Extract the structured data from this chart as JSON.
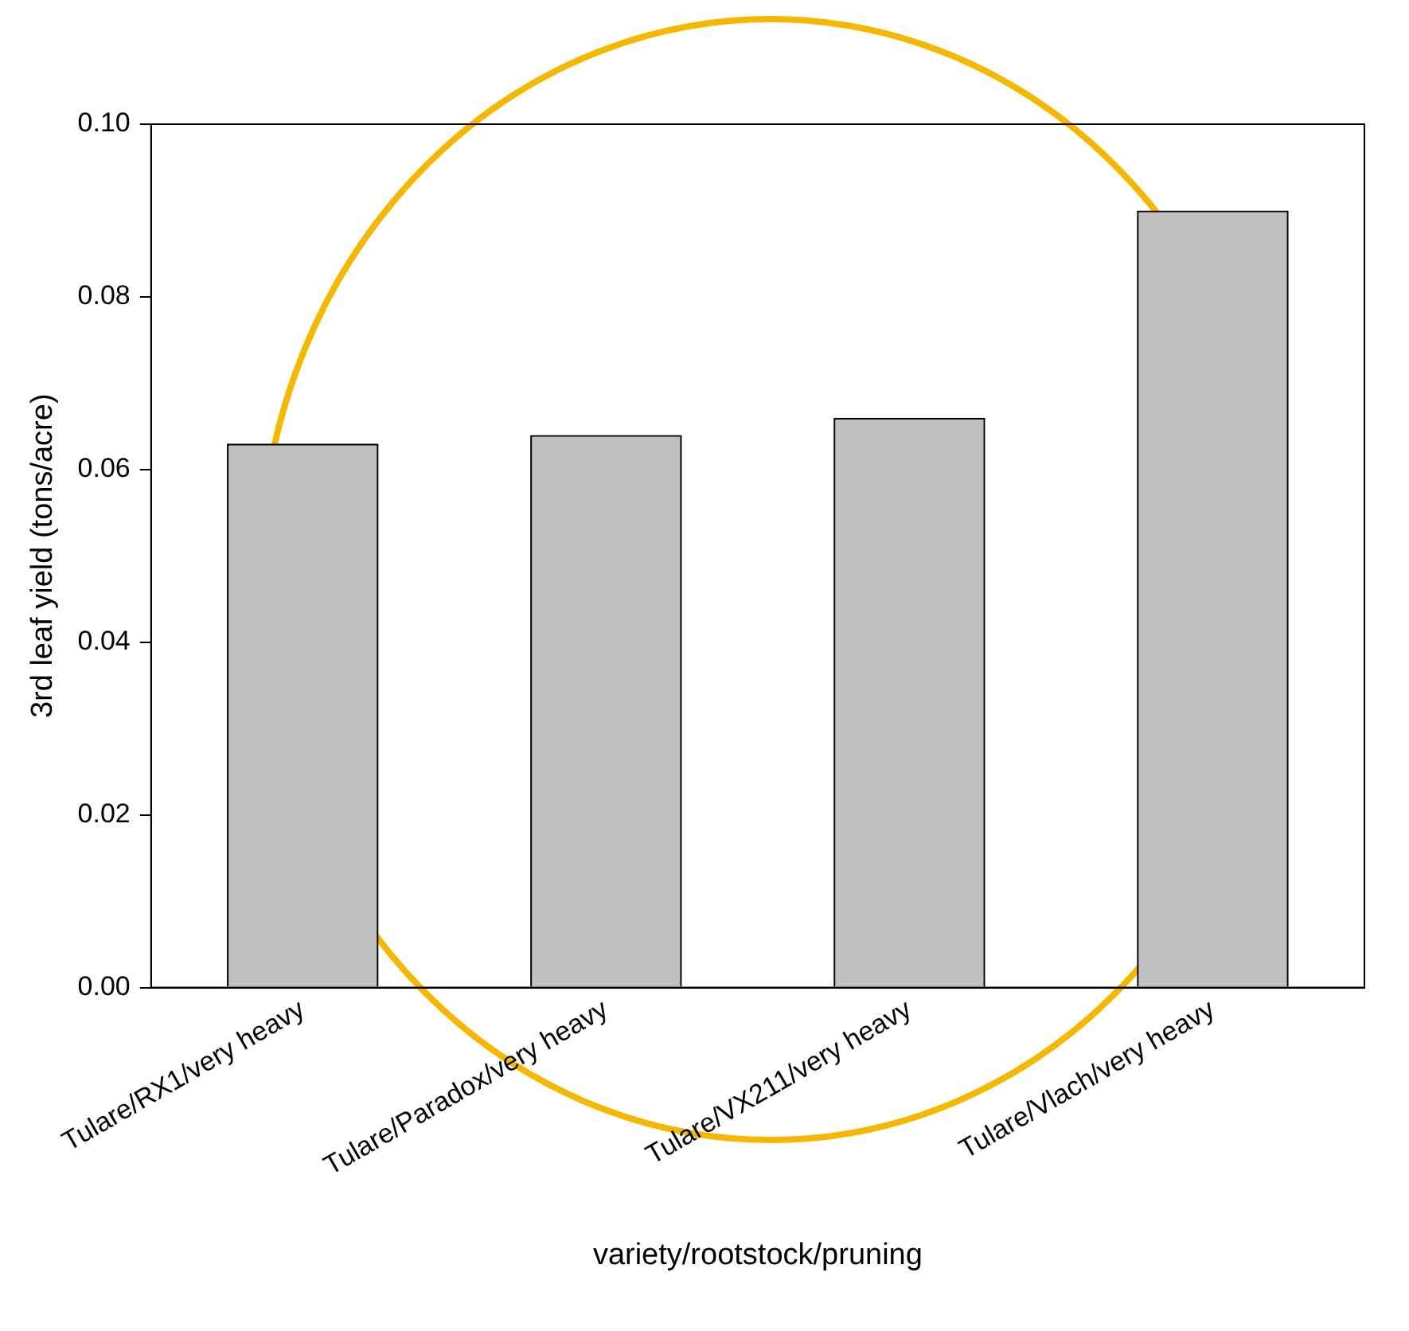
{
  "chart_data": {
    "type": "bar",
    "xlabel": "variety/rootstock/pruning",
    "ylabel": "3rd leaf yield (tons/acre)",
    "categories": [
      "Tulare/RX1/very heavy",
      "Tulare/Paradox/very heavy",
      "Tulare/VX211/very heavy",
      "Tulare/Vlach/very heavy"
    ],
    "values": [
      0.063,
      0.064,
      0.066,
      0.09
    ],
    "color": "#c0c0c0",
    "ylim": [
      0,
      0.1
    ],
    "yticks": [
      {
        "value": 0,
        "label": "0.00"
      },
      {
        "value": 0.02,
        "label": "0.02"
      },
      {
        "value": 0.04,
        "label": "0.04"
      },
      {
        "value": 0.06,
        "label": "0.06"
      },
      {
        "value": 0.08,
        "label": "0.08"
      },
      {
        "value": 0.1,
        "label": "0.10"
      }
    ],
    "grid": false,
    "legend": false
  }
}
